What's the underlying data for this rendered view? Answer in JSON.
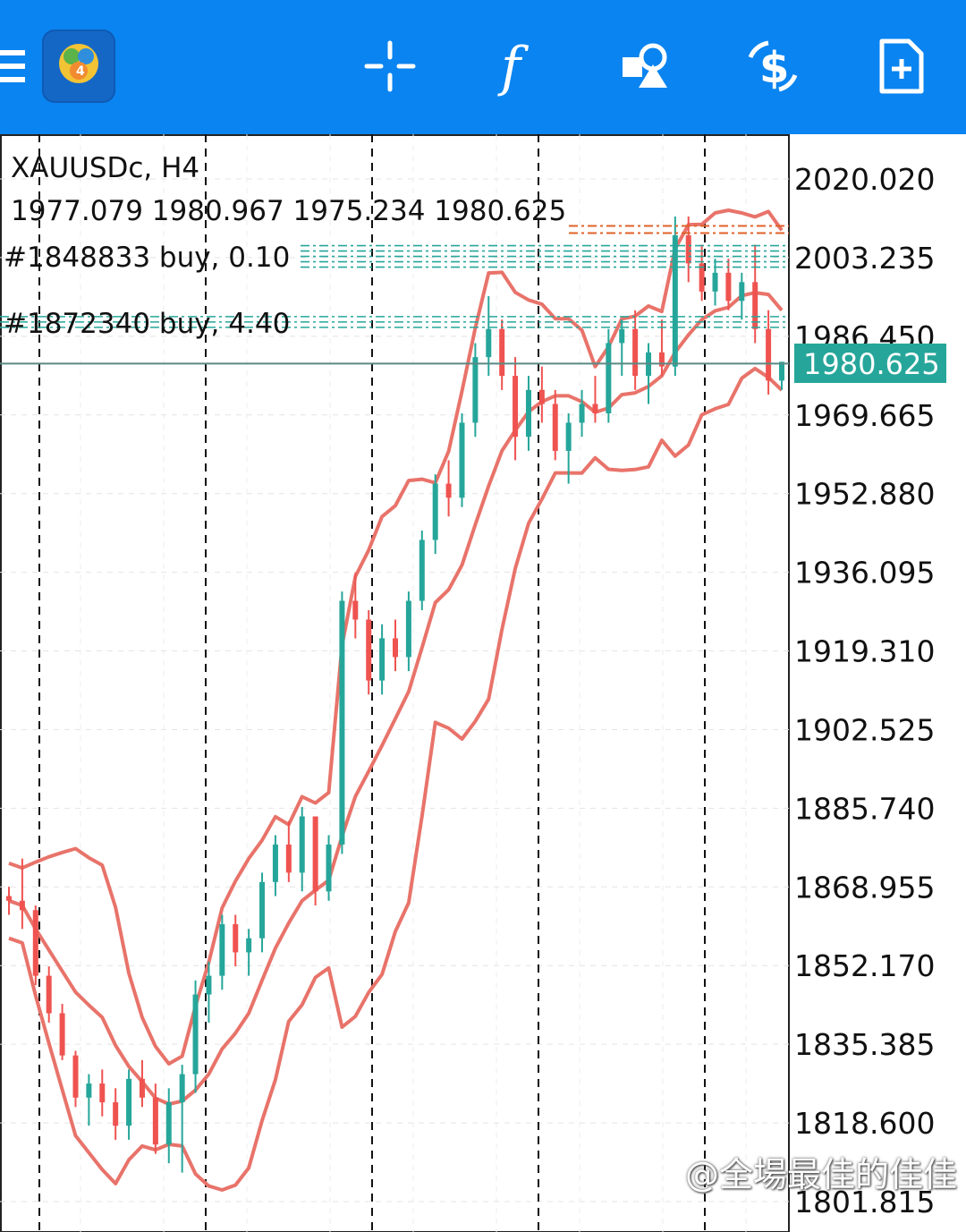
{
  "toolbar": {
    "menu_icon": "hamburger-menu-icon",
    "app_icon": "metatrader4-logo",
    "buttons": [
      {
        "name": "crosshair-button",
        "icon": "crosshair-icon"
      },
      {
        "name": "indicators-button",
        "icon": "function-f-icon"
      },
      {
        "name": "objects-button",
        "icon": "shapes-icon"
      },
      {
        "name": "trade-button",
        "icon": "dollar-refresh-icon"
      },
      {
        "name": "new-order-button",
        "icon": "add-document-icon"
      }
    ],
    "color": "#0a84f0"
  },
  "chart_header": {
    "symbol": "XAUUSDc, H4",
    "ohlc": "1977.079 1980.967 1975.234 1980.625"
  },
  "orders": [
    {
      "label": "#1848833 buy, 0.10"
    },
    {
      "label": "#1872340 buy, 4.40"
    }
  ],
  "current_price": "1980.625",
  "watermark": "@全場最佳的佳佳",
  "colors": {
    "band": "#e8736a",
    "bull": "#26a69a",
    "bear": "#ef5350",
    "stop": "#e0622a"
  },
  "chart_data": {
    "type": "candlestick",
    "title": "XAUUSDc, H4",
    "y_ticks": [
      "2020.020",
      "2003.235",
      "1986.450",
      "1969.665",
      "1952.880",
      "1936.095",
      "1919.310",
      "1902.525",
      "1885.740",
      "1868.955",
      "1852.170",
      "1835.385",
      "1818.600",
      "1801.815"
    ],
    "ylim": [
      1800,
      2024
    ],
    "order_levels": [
      2003.5,
      1989.5
    ],
    "stop_level": 2010,
    "candles": [
      [
        1867,
        1869,
        1863,
        1866
      ],
      [
        1866,
        1875,
        1860,
        1864
      ],
      [
        1864,
        1865,
        1848,
        1850
      ],
      [
        1850,
        1852,
        1840,
        1842
      ],
      [
        1842,
        1844,
        1832,
        1833
      ],
      [
        1833,
        1834,
        1822,
        1824
      ],
      [
        1824,
        1829,
        1818,
        1827
      ],
      [
        1827,
        1830,
        1820,
        1823
      ],
      [
        1823,
        1826,
        1815,
        1818
      ],
      [
        1818,
        1830,
        1815,
        1828
      ],
      [
        1828,
        1832,
        1822,
        1824
      ],
      [
        1824,
        1827,
        1812,
        1814
      ],
      [
        1814,
        1826,
        1810,
        1823
      ],
      [
        1823,
        1831,
        1808,
        1829
      ],
      [
        1829,
        1849,
        1825,
        1846
      ],
      [
        1846,
        1853,
        1840,
        1850
      ],
      [
        1850,
        1863,
        1847,
        1861
      ],
      [
        1861,
        1863,
        1852,
        1855
      ],
      [
        1855,
        1860,
        1850,
        1858
      ],
      [
        1858,
        1872,
        1855,
        1870
      ],
      [
        1870,
        1880,
        1867,
        1878
      ],
      [
        1878,
        1883,
        1870,
        1872
      ],
      [
        1872,
        1886,
        1868,
        1884
      ],
      [
        1884,
        1884,
        1865,
        1868
      ],
      [
        1868,
        1880,
        1866,
        1878
      ],
      [
        1878,
        1932,
        1876,
        1930
      ],
      [
        1930,
        1936,
        1922,
        1926
      ],
      [
        1926,
        1928,
        1910,
        1913
      ],
      [
        1913,
        1925,
        1910,
        1922
      ],
      [
        1922,
        1926,
        1915,
        1918
      ],
      [
        1918,
        1932,
        1915,
        1930
      ],
      [
        1930,
        1945,
        1928,
        1943
      ],
      [
        1943,
        1957,
        1940,
        1955
      ],
      [
        1955,
        1960,
        1948,
        1952
      ],
      [
        1952,
        1970,
        1950,
        1968
      ],
      [
        1968,
        1985,
        1965,
        1982
      ],
      [
        1982,
        1995,
        1978,
        1988
      ],
      [
        1988,
        1990,
        1975,
        1978
      ],
      [
        1978,
        1982,
        1960,
        1965
      ],
      [
        1965,
        1978,
        1962,
        1975
      ],
      [
        1975,
        1980,
        1968,
        1972
      ],
      [
        1972,
        1975,
        1960,
        1962
      ],
      [
        1962,
        1970,
        1955,
        1968
      ],
      [
        1968,
        1975,
        1965,
        1972
      ],
      [
        1972,
        1978,
        1968,
        1970
      ],
      [
        1970,
        1988,
        1968,
        1985
      ],
      [
        1985,
        1990,
        1978,
        1988
      ],
      [
        1988,
        1992,
        1975,
        1978
      ],
      [
        1978,
        1985,
        1972,
        1983
      ],
      [
        1983,
        1990,
        1978,
        1980
      ],
      [
        1980,
        2012,
        1978,
        2008
      ],
      [
        2008,
        2012,
        1998,
        2002
      ],
      [
        2002,
        2006,
        1994,
        1996
      ],
      [
        1996,
        2003,
        1993,
        2000
      ],
      [
        2000,
        2003,
        1992,
        1994
      ],
      [
        1994,
        2000,
        1990,
        1998
      ],
      [
        1998,
        2006,
        1985,
        1988
      ],
      [
        1988,
        1992,
        1974,
        1977
      ],
      [
        1977,
        1981,
        1975,
        1981
      ]
    ]
  }
}
